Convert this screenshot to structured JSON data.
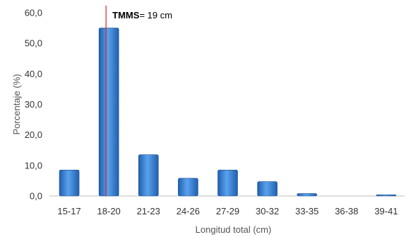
{
  "chart_data": {
    "type": "bar",
    "categories": [
      "15-17",
      "18-20",
      "21-23",
      "24-26",
      "27-29",
      "30-32",
      "33-35",
      "36-38",
      "39-41"
    ],
    "values": [
      8.5,
      55.0,
      13.5,
      5.8,
      8.5,
      4.7,
      0.8,
      0.0,
      0.4
    ],
    "xlabel": "Longitud total (cm)",
    "ylabel": "Porcentaje (%)",
    "ylim": [
      0,
      60
    ],
    "yticks": [
      "0,0",
      "10,0",
      "20,0",
      "30,0",
      "40,0",
      "50,0",
      "60,0"
    ],
    "grid": false,
    "legend": "none",
    "bar_color": "#3b7fd4",
    "annotation": {
      "label_bold": "TMMS",
      "label_rest": "= 19 cm",
      "x_value": 19,
      "color": "#e0201b"
    }
  }
}
